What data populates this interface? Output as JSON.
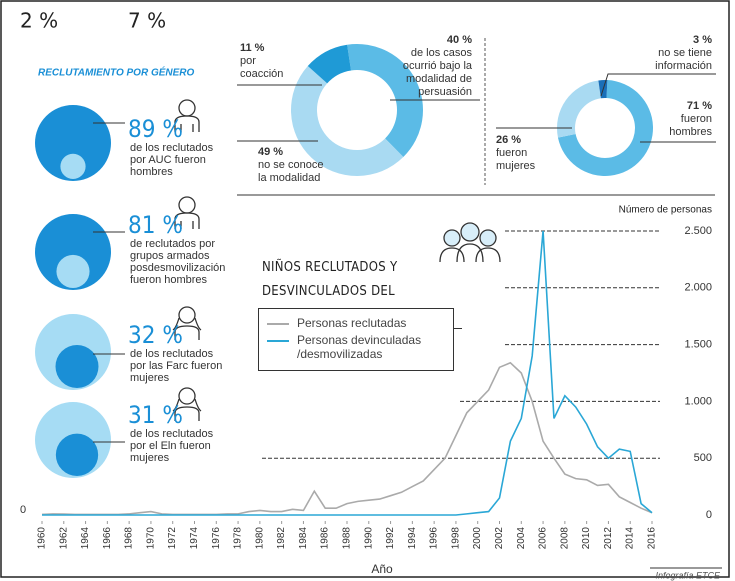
{
  "top_fragments": [
    "2 %",
    "7 %"
  ],
  "gender": {
    "title": "RECLUTAMIENTO POR GÉNERO",
    "items": [
      {
        "value": 89,
        "value_label": "89 %",
        "lines": [
          "de los reclutados",
          "por AUC fueron",
          "hombres"
        ],
        "color": "#1a8fd6",
        "other_color": "#a6dcf4"
      },
      {
        "value": 81,
        "value_label": "81 %",
        "lines": [
          "de reclutados por",
          "grupos armados",
          "posdesmovilización",
          "fueron hombres"
        ],
        "color": "#1a8fd6",
        "other_color": "#a6dcf4"
      },
      {
        "value": 32,
        "value_label": "32 %",
        "lines": [
          "de los reclutados",
          "por las Farc fueron",
          "mujeres"
        ],
        "color": "#1a8fd6",
        "other_color": "#a6dcf4"
      },
      {
        "value": 31,
        "value_label": "31 %",
        "lines": [
          "de los reclutados",
          "por el Eln fueron",
          "mujeres"
        ],
        "color": "#1a8fd6",
        "other_color": "#a6dcf4"
      }
    ]
  },
  "credit": "Infografía ETCE",
  "chart_data": [
    {
      "type": "line",
      "title": "NIÑOS RECLUTADOS Y DESVINCULADOS DEL CONFLICTO",
      "x_label": "Año",
      "y_label": "Número de personas",
      "x": [
        1960,
        1961,
        1962,
        1963,
        1964,
        1965,
        1966,
        1967,
        1968,
        1969,
        1970,
        1971,
        1972,
        1973,
        1974,
        1975,
        1976,
        1977,
        1978,
        1979,
        1980,
        1981,
        1982,
        1983,
        1984,
        1985,
        1986,
        1987,
        1988,
        1989,
        1990,
        1991,
        1992,
        1993,
        1994,
        1995,
        1996,
        1997,
        1998,
        1999,
        2000,
        2001,
        2002,
        2003,
        2004,
        2005,
        2006,
        2007,
        2008,
        2009,
        2010,
        2011,
        2012,
        2013,
        2014,
        2015,
        2016
      ],
      "xlim": [
        1960,
        2016
      ],
      "xticks": [
        1960,
        1962,
        1964,
        1966,
        1968,
        1970,
        1972,
        1974,
        1976,
        1978,
        1980,
        1982,
        1984,
        1986,
        1988,
        1990,
        1992,
        1994,
        1996,
        1998,
        2000,
        2002,
        2004,
        2006,
        2008,
        2010,
        2012,
        2014,
        2016
      ],
      "ylim": [
        0,
        2500
      ],
      "yticks": [
        0,
        500,
        {
          "value": 1000,
          "label": "1.000"
        },
        {
          "value": 1500,
          "label": "1.500"
        },
        {
          "value": 2000,
          "label": "2.000"
        },
        {
          "value": 2500,
          "label": "2.500"
        }
      ],
      "grid": true,
      "series": [
        {
          "name": "Personas reclutadas",
          "color": "#aaaaaa",
          "values": [
            5,
            10,
            8,
            5,
            5,
            5,
            5,
            5,
            10,
            20,
            30,
            10,
            5,
            5,
            5,
            5,
            5,
            10,
            10,
            30,
            40,
            30,
            30,
            50,
            40,
            210,
            60,
            60,
            100,
            120,
            130,
            140,
            170,
            200,
            250,
            300,
            400,
            500,
            700,
            900,
            1000,
            1100,
            1300,
            1340,
            1250,
            1000,
            650,
            500,
            360,
            320,
            310,
            260,
            270,
            160,
            110,
            60,
            20
          ]
        },
        {
          "name": "Personas devinculadas /desmovilizadas",
          "color": "#2aa7d6",
          "values": [
            0,
            0,
            0,
            0,
            0,
            0,
            0,
            0,
            0,
            0,
            0,
            0,
            0,
            0,
            0,
            0,
            0,
            0,
            0,
            0,
            0,
            0,
            0,
            0,
            0,
            0,
            0,
            0,
            0,
            0,
            0,
            0,
            0,
            0,
            0,
            0,
            0,
            0,
            0,
            10,
            20,
            30,
            150,
            650,
            850,
            1400,
            2500,
            850,
            1050,
            950,
            800,
            600,
            500,
            580,
            560,
            100,
            20
          ]
        }
      ]
    },
    {
      "type": "donut",
      "values": [
        40,
        49,
        11
      ],
      "value_labels": [
        "40 %",
        "49 %",
        "11 %"
      ],
      "descriptions": [
        [
          "de los casos",
          "ocurrió bajo la",
          "modalidad de",
          "persuasión"
        ],
        [
          "no se conoce",
          "la modalidad"
        ],
        [
          "por",
          "coacción"
        ]
      ],
      "colors": [
        "#5bbbe6",
        "#a9daf2",
        "#1f9ad6"
      ]
    },
    {
      "type": "donut",
      "values": [
        71,
        26,
        3
      ],
      "value_labels": [
        "71 %",
        "26 %",
        "3 %"
      ],
      "descriptions": [
        [
          "fueron",
          "hombres"
        ],
        [
          "fueron",
          "mujeres"
        ],
        [
          "no se tiene",
          "información"
        ]
      ],
      "colors": [
        "#5bbbe6",
        "#a9daf2",
        "#1a6fb8"
      ]
    }
  ]
}
